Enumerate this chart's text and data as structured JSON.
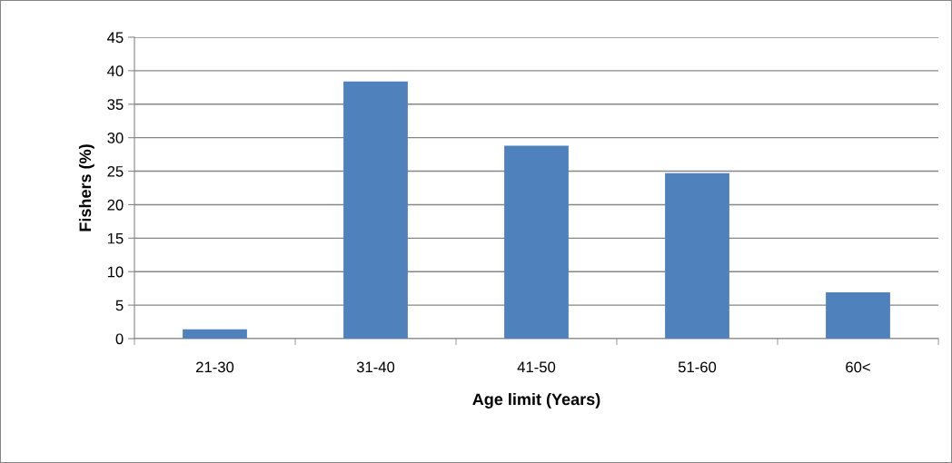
{
  "chart_data": {
    "type": "bar",
    "xlabel": "Age limit (Years)",
    "ylabel": "Fishers (%)",
    "categories": [
      "21-30",
      "31-40",
      "41-50",
      "51-60",
      "60<"
    ],
    "values": [
      1.4,
      38.4,
      28.8,
      24.7,
      6.9
    ],
    "color": "#4f81bd",
    "ylim": [
      0,
      45
    ],
    "yticks": [
      0,
      5,
      10,
      15,
      20,
      25,
      30,
      35,
      40,
      45
    ],
    "grid": "y",
    "legend": false
  }
}
